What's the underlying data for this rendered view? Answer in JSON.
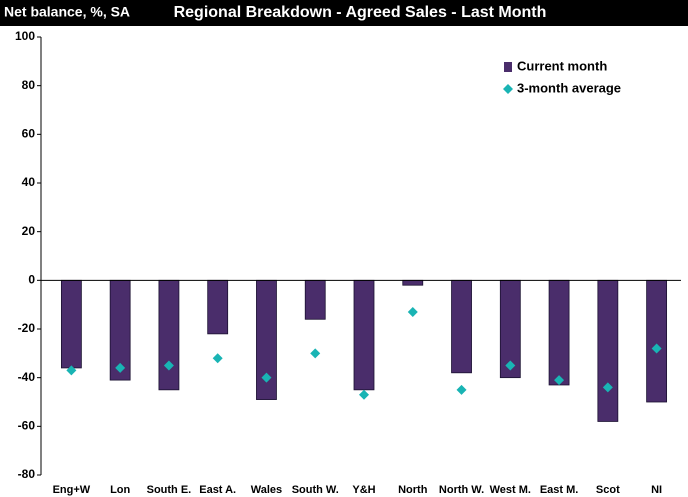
{
  "chart_data": {
    "type": "bar",
    "header_label": "Net balance, %, SA",
    "title": "Regional Breakdown - Agreed Sales - Last Month",
    "categories": [
      "Eng+W",
      "Lon",
      "South E.",
      "East A.",
      "Wales",
      "South W.",
      "Y&H",
      "North",
      "North W.",
      "West M.",
      "East M.",
      "Scot",
      "NI"
    ],
    "series": [
      {
        "name": "Current month",
        "type": "bar",
        "color": "#4a2d6b",
        "values": [
          -36,
          -41,
          -45,
          -22,
          -49,
          -16,
          -45,
          -2,
          -38,
          -40,
          -43,
          -58,
          -50
        ]
      },
      {
        "name": "3-month average",
        "type": "marker",
        "marker": "diamond",
        "color": "#19b4b4",
        "values": [
          -37,
          -36,
          -35,
          -32,
          -40,
          -30,
          -47,
          -13,
          -45,
          -35,
          -41,
          -44,
          -28
        ]
      }
    ],
    "ylim": [
      -80,
      100
    ],
    "yticks": [
      -80,
      -60,
      -40,
      -20,
      0,
      20,
      40,
      60,
      80,
      100
    ],
    "grid": false,
    "legend": "top-right"
  }
}
